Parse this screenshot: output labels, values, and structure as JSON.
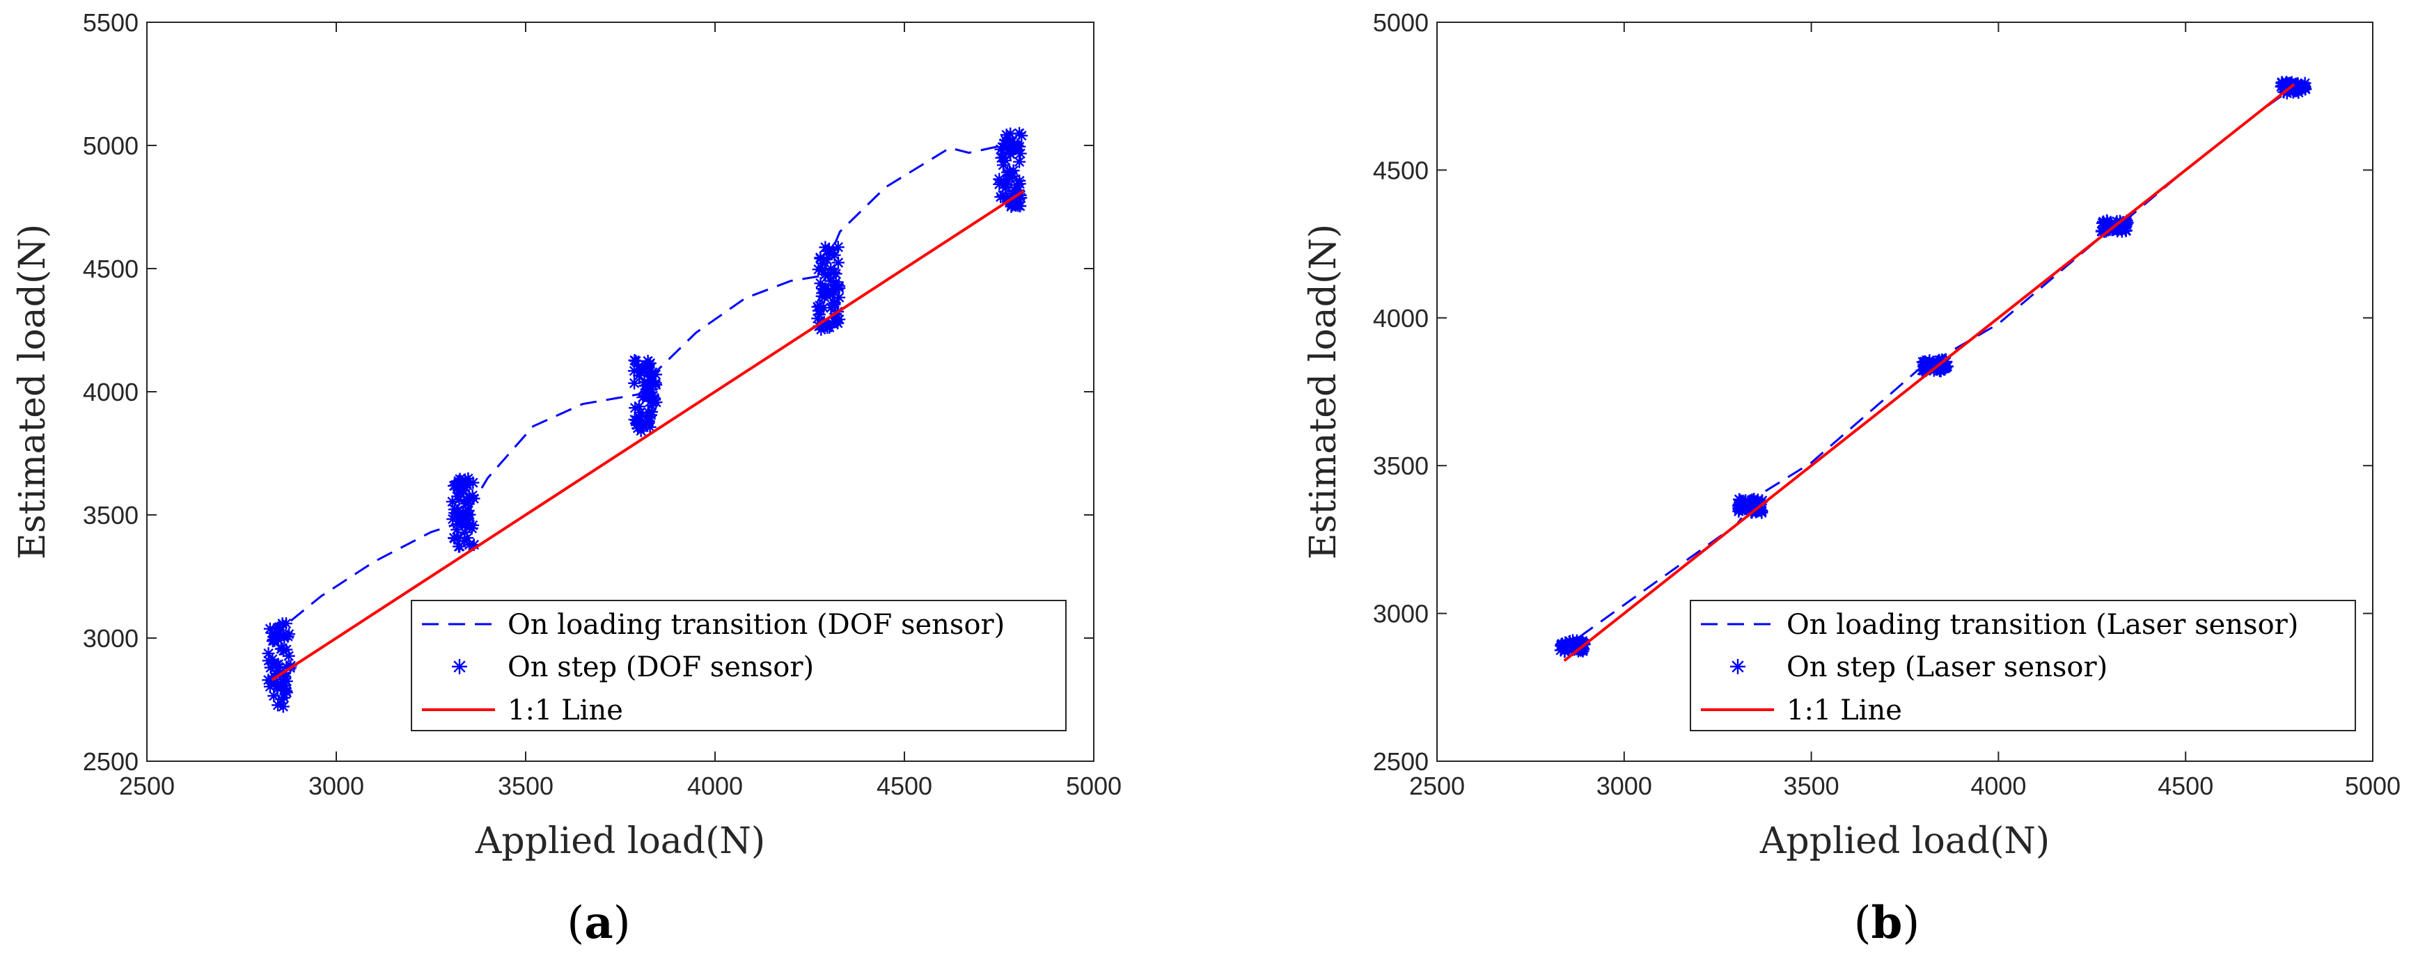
{
  "chart_data": [
    {
      "type": "scatter",
      "panel_label": "a",
      "xlabel": "Applied load(N)",
      "ylabel": "Estimated load(N)",
      "xlim": [
        2500,
        5000
      ],
      "ylim": [
        2500,
        5500
      ],
      "xticks": [
        2500,
        3000,
        3500,
        4000,
        4500,
        5000
      ],
      "yticks": [
        2500,
        3000,
        3500,
        4000,
        4500,
        5000,
        5500
      ],
      "legend_position": "bottom-right",
      "colors": {
        "transition": "#0000ff",
        "step": "#0000ff",
        "line": "#ff0000"
      },
      "series": [
        {
          "name": "On loading transition (DOF sensor)",
          "style": "dashed",
          "x": [
            2880,
            2960,
            3100,
            3250,
            3330,
            3400,
            3520,
            3650,
            3800,
            3850,
            3950,
            4080,
            4200,
            4280,
            4330,
            4450,
            4620,
            4670,
            4760,
            4800
          ],
          "y": [
            3070,
            3170,
            3310,
            3430,
            3470,
            3650,
            3860,
            3950,
            3990,
            4090,
            4240,
            4380,
            4450,
            4470,
            4650,
            4830,
            4990,
            4970,
            5000,
            4980
          ]
        },
        {
          "name": "On step (DOF sensor)",
          "style": "asterisk",
          "clusters": [
            {
              "x_center": 2850,
              "y_min": 2720,
              "y_max": 3060
            },
            {
              "x_center": 3335,
              "y_min": 3370,
              "y_max": 3650
            },
            {
              "x_center": 3815,
              "y_min": 3840,
              "y_max": 4130
            },
            {
              "x_center": 4300,
              "y_min": 4250,
              "y_max": 4600
            },
            {
              "x_center": 4780,
              "y_min": 4750,
              "y_max": 5050
            }
          ]
        },
        {
          "name": "1:1 Line",
          "style": "solid",
          "x": [
            2830,
            4815
          ],
          "y": [
            2830,
            4815
          ]
        }
      ]
    },
    {
      "type": "scatter",
      "panel_label": "b",
      "xlabel": "Applied load(N)",
      "ylabel": "Estimated load(N)",
      "xlim": [
        2500,
        5000
      ],
      "ylim": [
        2500,
        5000
      ],
      "xticks": [
        2500,
        3000,
        3500,
        4000,
        4500,
        5000
      ],
      "yticks": [
        2500,
        3000,
        3500,
        4000,
        4500,
        5000
      ],
      "legend_position": "bottom-right",
      "colors": {
        "transition": "#0000ff",
        "step": "#0000ff",
        "line": "#ff0000"
      },
      "series": [
        {
          "name": "On loading transition (Laser sensor)",
          "style": "dashed",
          "x": [
            2880,
            3100,
            3300,
            3360,
            3500,
            3800,
            3850,
            4000,
            4280,
            4330,
            4500,
            4700,
            4800
          ],
          "y": [
            2920,
            3120,
            3300,
            3400,
            3510,
            3840,
            3870,
            3980,
            4280,
            4320,
            4500,
            4700,
            4790
          ]
        },
        {
          "name": "On step (Laser sensor)",
          "style": "asterisk",
          "clusters": [
            {
              "x_center": 2860,
              "y_min": 2870,
              "y_max": 2910
            },
            {
              "x_center": 3340,
              "y_min": 3340,
              "y_max": 3390
            },
            {
              "x_center": 3830,
              "y_min": 3820,
              "y_max": 3860
            },
            {
              "x_center": 4310,
              "y_min": 4290,
              "y_max": 4330
            },
            {
              "x_center": 4790,
              "y_min": 4760,
              "y_max": 4800
            }
          ]
        },
        {
          "name": "1:1 Line",
          "style": "solid",
          "x": [
            2840,
            4790
          ],
          "y": [
            2840,
            4790
          ]
        }
      ]
    }
  ]
}
